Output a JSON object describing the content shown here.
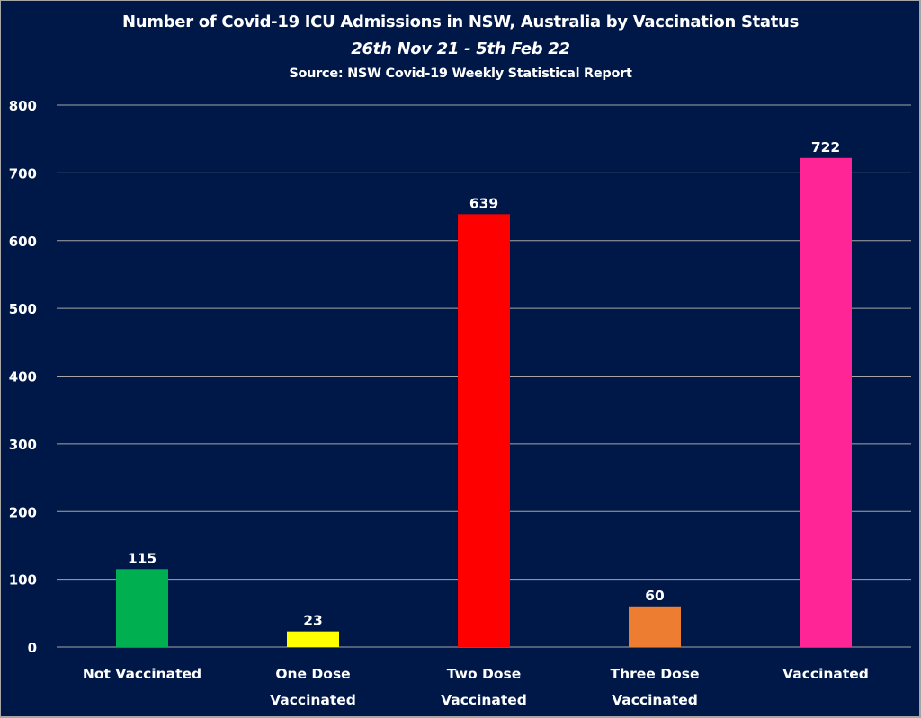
{
  "chart_data": {
    "type": "bar",
    "title": "Number of Covid-19 ICU Admissions in NSW, Australia by Vaccination Status",
    "subtitle": "26th Nov 21 - 5th Feb 22",
    "source": "Source: NSW Covid-19 Weekly Statistical Report",
    "xlabel": "",
    "ylabel": "",
    "ylim": [
      0,
      800
    ],
    "yticks": [
      0,
      100,
      200,
      300,
      400,
      500,
      600,
      700,
      800
    ],
    "grid": true,
    "legend": "none",
    "categories": [
      [
        "Not Vaccinated"
      ],
      [
        "One Dose",
        "Vaccinated"
      ],
      [
        "Two Dose",
        "Vaccinated"
      ],
      [
        "Three Dose",
        "Vaccinated"
      ],
      [
        "Vaccinated"
      ]
    ],
    "values": [
      115,
      23,
      639,
      60,
      722
    ],
    "colors": [
      "#00b050",
      "#ffff00",
      "#ff0000",
      "#ed7d31",
      "#ff2596"
    ],
    "data_labels": [
      "115",
      "23",
      "639",
      "60",
      "722"
    ]
  },
  "theme": {
    "background": "#001848",
    "gridline": "#a6a6a6",
    "text": "#ffffff"
  }
}
